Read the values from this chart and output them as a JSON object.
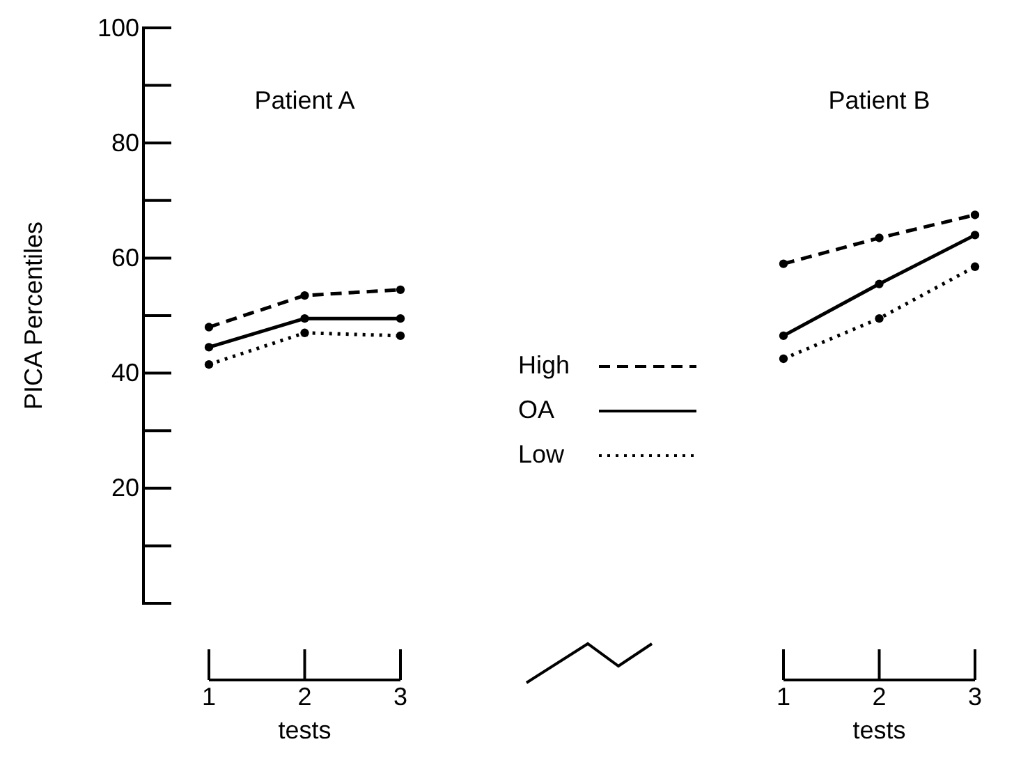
{
  "chart_data": {
    "type": "line",
    "xlabel": "tests",
    "ylabel": "PICA Percentiles",
    "annotations": [
      "Patient A",
      "Patient B",
      "tests"
    ],
    "categories": [
      "1",
      "2",
      "3",
      null,
      null,
      null,
      "1",
      "2",
      "3"
    ],
    "ylim": [
      0,
      100
    ],
    "yticks": [
      20,
      40,
      60,
      80,
      100
    ],
    "marker": "circle",
    "legend": "bottom",
    "series": [
      {
        "name": "High",
        "color": "#000000",
        "line_style": "dashed",
        "values": [
          48,
          53.5,
          54.5,
          null,
          null,
          null,
          59,
          63.5,
          67.5
        ]
      },
      {
        "name": "OA",
        "color": "#000000",
        "line_style": "solid",
        "values": [
          44.5,
          49.5,
          49.5,
          null,
          null,
          null,
          46.5,
          55.5,
          64
        ]
      },
      {
        "name": "Low",
        "color": "#000000",
        "line_style": "dotted",
        "values": [
          41.5,
          47,
          46.5,
          null,
          null,
          null,
          42.5,
          49.5,
          58.5
        ]
      }
    ]
  }
}
